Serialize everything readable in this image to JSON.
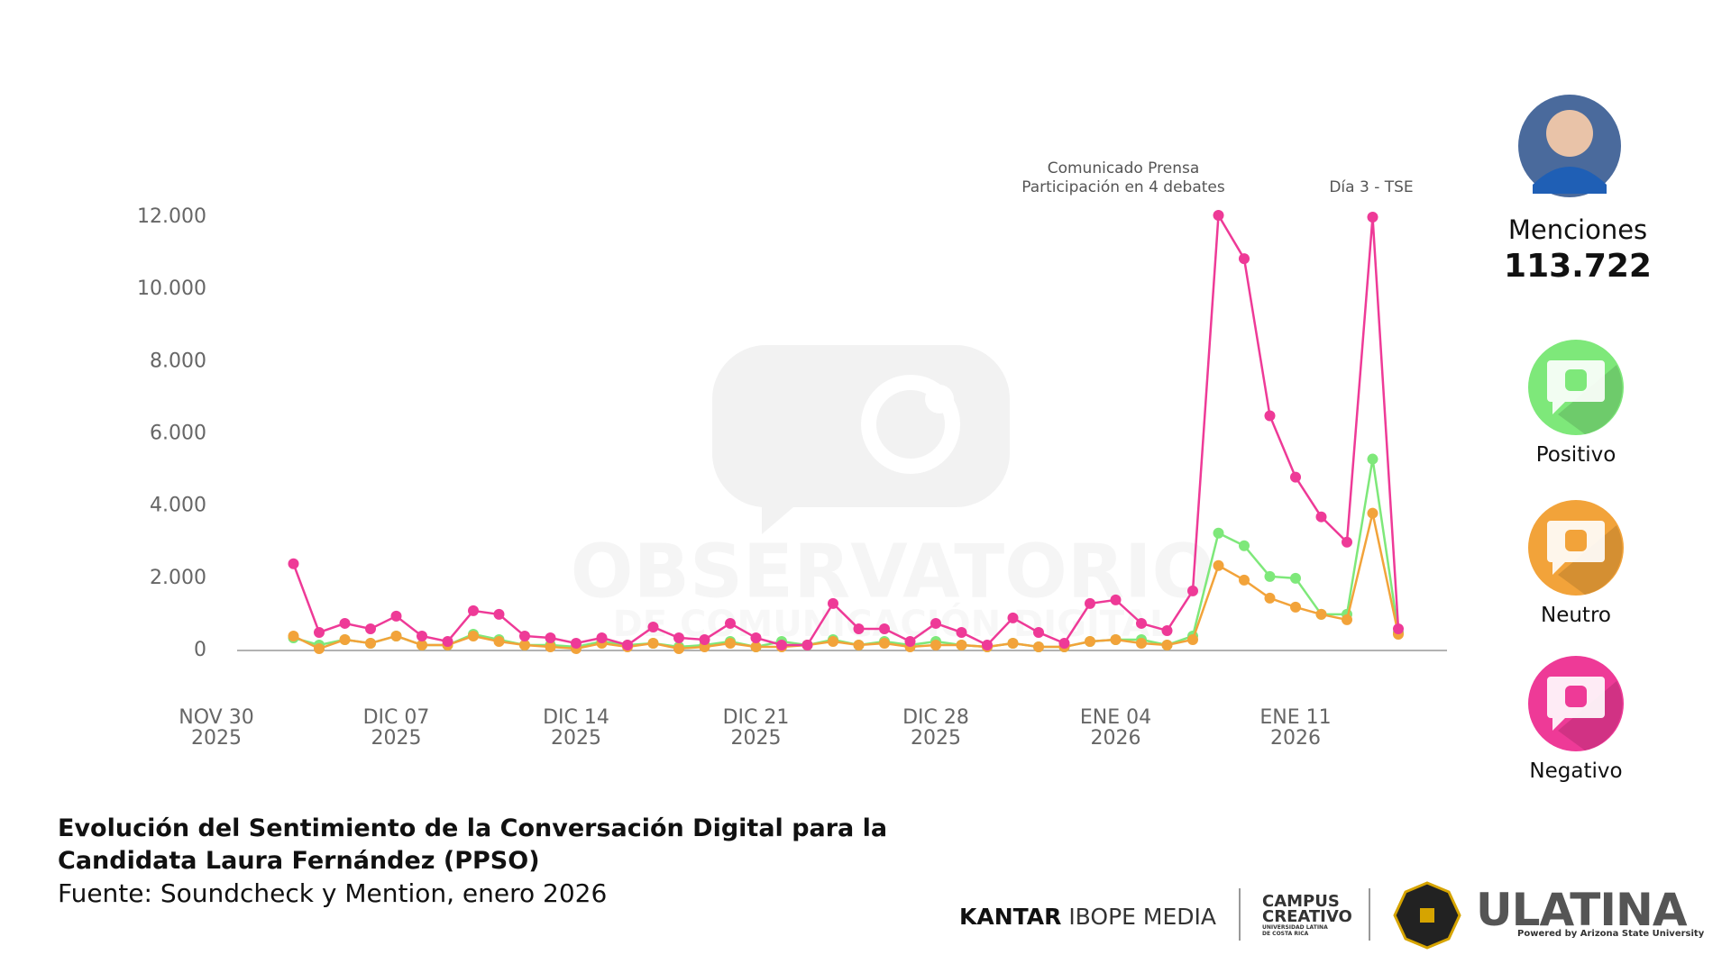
{
  "chart_data": {
    "type": "line",
    "title": "Evolución del Sentimiento de la Conversación Digital para la Candidata Laura Fernández (PPSO)",
    "source": "Fuente: Soundcheck y Mention, enero 2026",
    "annotations": [
      [
        "Comunicado Prensa",
        "Participación en 4 debates"
      ],
      [
        "Día 3 - TSE"
      ]
    ],
    "x": [
      "2025-12-03",
      "2025-12-04",
      "2025-12-05",
      "2025-12-06",
      "2025-12-07",
      "2025-12-08",
      "2025-12-09",
      "2025-12-10",
      "2025-12-11",
      "2025-12-12",
      "2025-12-13",
      "2025-12-14",
      "2025-12-15",
      "2025-12-16",
      "2025-12-17",
      "2025-12-18",
      "2025-12-19",
      "2025-12-20",
      "2025-12-21",
      "2025-12-22",
      "2025-12-23",
      "2025-12-24",
      "2025-12-25",
      "2025-12-26",
      "2025-12-27",
      "2025-12-28",
      "2025-12-29",
      "2025-12-30",
      "2025-12-31",
      "2026-01-01",
      "2026-01-02",
      "2026-01-03",
      "2026-01-04",
      "2026-01-05",
      "2026-01-06",
      "2026-01-07",
      "2026-01-08",
      "2026-01-09",
      "2026-01-10",
      "2026-01-11",
      "2026-01-12",
      "2026-01-13",
      "2026-01-14",
      "2026-01-15"
    ],
    "xlim": [
      "2025-11-28",
      "2026-01-17"
    ],
    "xticks": [
      {
        "value": "2025-11-30",
        "label": [
          "NOV 30",
          "2025"
        ]
      },
      {
        "value": "2025-12-07",
        "label": [
          "DIC 07",
          "2025"
        ]
      },
      {
        "value": "2025-12-14",
        "label": [
          "DIC 14",
          "2025"
        ]
      },
      {
        "value": "2025-12-21",
        "label": [
          "DIC 21",
          "2025"
        ]
      },
      {
        "value": "2025-12-28",
        "label": [
          "DIC 28",
          "2025"
        ]
      },
      {
        "value": "2026-01-04",
        "label": [
          "ENE 04",
          "2026"
        ]
      },
      {
        "value": "2026-01-11",
        "label": [
          "ENE 11",
          "2026"
        ]
      }
    ],
    "ylim": [
      0,
      12000
    ],
    "yticks": [
      0,
      {
        "value": 2000,
        "label": "2.000"
      },
      {
        "value": 4000,
        "label": "4.000"
      },
      {
        "value": 6000,
        "label": "6.000"
      },
      {
        "value": 8000,
        "label": "8.000"
      },
      {
        "value": 10000,
        "label": "10.000"
      },
      {
        "value": 12000,
        "label": "12.000"
      }
    ],
    "grid": false,
    "series": [
      {
        "name": "Positivo",
        "color": "#7ee87a",
        "values": [
          350,
          150,
          300,
          200,
          400,
          150,
          150,
          450,
          300,
          150,
          150,
          100,
          250,
          150,
          200,
          100,
          150,
          250,
          100,
          250,
          150,
          300,
          150,
          250,
          150,
          250,
          150,
          100,
          200,
          100,
          100,
          250,
          300,
          300,
          150,
          400,
          3250,
          2900,
          2050,
          2000,
          1000,
          1000,
          5300,
          500
        ]
      },
      {
        "name": "Neutro",
        "color": "#f2a33a",
        "values": [
          400,
          50,
          300,
          200,
          400,
          150,
          150,
          400,
          250,
          150,
          100,
          50,
          200,
          100,
          200,
          50,
          100,
          200,
          100,
          100,
          150,
          250,
          150,
          200,
          100,
          150,
          150,
          100,
          200,
          100,
          100,
          250,
          300,
          200,
          150,
          300,
          2350,
          1950,
          1450,
          1200,
          1000,
          850,
          3800,
          450
        ]
      },
      {
        "name": "Negativo",
        "color": "#ee3a97",
        "values": [
          2400,
          500,
          750,
          600,
          950,
          400,
          250,
          1100,
          1000,
          400,
          350,
          200,
          350,
          150,
          650,
          350,
          300,
          750,
          350,
          150,
          150,
          1300,
          600,
          600,
          250,
          750,
          500,
          150,
          900,
          500,
          200,
          1300,
          1400,
          750,
          550,
          1650,
          12050,
          10850,
          6500,
          4800,
          3700,
          3000,
          12000,
          600
        ]
      }
    ]
  },
  "sidebar": {
    "label": "Menciones",
    "total": "113.722"
  },
  "watermark": [
    "OBSERVATORIO",
    "DE COMUNICACIÓN DIGITAL"
  ],
  "footer": {
    "logos": [
      "KANTAR",
      "IBOPE MEDIA",
      "CAMPUS",
      "CREATIVO",
      "UNIVERSIDAD LATINA DE COSTA RICA",
      "ULATINA",
      "Powered by Arizona State University"
    ]
  }
}
